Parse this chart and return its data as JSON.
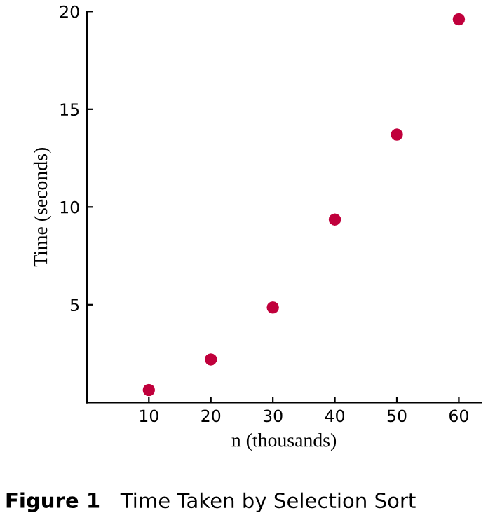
{
  "chart_data": {
    "type": "scatter",
    "xlabel": "n (thousands)",
    "ylabel": "Time (seconds)",
    "x": [
      10,
      20,
      30,
      40,
      50,
      60
    ],
    "series": [
      {
        "color": "#c0003c",
        "values": [
          0.64,
          2.2,
          4.86,
          9.36,
          13.7,
          19.6
        ]
      }
    ],
    "xlim": [
      0,
      63.6
    ],
    "ylim": [
      0,
      20
    ],
    "xticks": [
      10,
      20,
      30,
      40,
      50,
      60
    ],
    "yticks": [
      5,
      10,
      15,
      20
    ],
    "marker": "circle",
    "grid": false,
    "legend": false,
    "annotations": [
      "Figure 1",
      "Time Taken by Selection Sort"
    ]
  }
}
